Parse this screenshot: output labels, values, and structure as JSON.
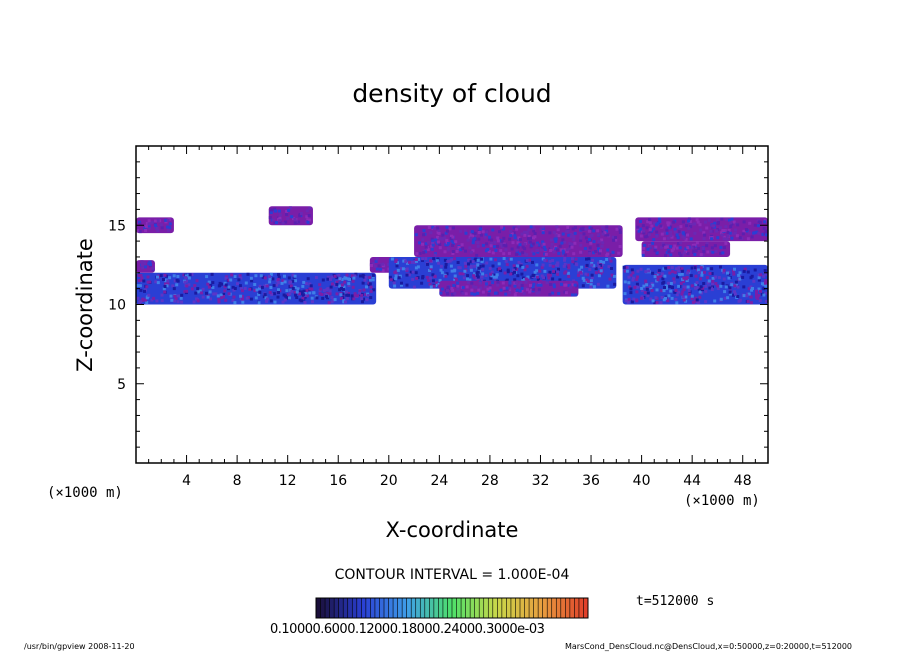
{
  "chart_data": {
    "type": "heatmap",
    "title": "density of cloud",
    "xlabel": "X-coordinate",
    "ylabel": "Z-coordinate",
    "x_unit": "(×1000 m)",
    "y_unit": "(×1000 m)",
    "xlim": [
      0,
      50
    ],
    "ylim": [
      0,
      20
    ],
    "xticks": [
      4,
      8,
      12,
      16,
      20,
      24,
      28,
      32,
      36,
      40,
      44,
      48
    ],
    "yticks": [
      5,
      10,
      15
    ],
    "contour_interval_text": "CONTOUR INTERVAL = 1.000E-04",
    "time_text": "t=512000 s",
    "colorbar_labels_text": "0.10000.6000.12000.18000.24000.3000e-03",
    "cloud_regions": [
      {
        "x": [
          0.0,
          3.0
        ],
        "z": [
          14.5,
          15.5
        ],
        "level": "purple"
      },
      {
        "x": [
          10.5,
          14.0
        ],
        "z": [
          15.0,
          16.2
        ],
        "level": "purple"
      },
      {
        "x": [
          0.0,
          19.0
        ],
        "z": [
          10.0,
          12.0
        ],
        "level": "blue"
      },
      {
        "x": [
          0.0,
          1.5
        ],
        "z": [
          12.0,
          12.8
        ],
        "level": "purple"
      },
      {
        "x": [
          18.5,
          23.0
        ],
        "z": [
          12.0,
          13.0
        ],
        "level": "purple"
      },
      {
        "x": [
          22.0,
          38.5
        ],
        "z": [
          13.0,
          15.0
        ],
        "level": "purple"
      },
      {
        "x": [
          20.0,
          38.0
        ],
        "z": [
          11.0,
          13.0
        ],
        "level": "blue"
      },
      {
        "x": [
          24.0,
          35.0
        ],
        "z": [
          10.5,
          11.5
        ],
        "level": "purple"
      },
      {
        "x": [
          38.5,
          50.0
        ],
        "z": [
          10.0,
          12.5
        ],
        "level": "blue"
      },
      {
        "x": [
          39.5,
          50.0
        ],
        "z": [
          14.0,
          15.5
        ],
        "level": "purple"
      },
      {
        "x": [
          40.0,
          47.0
        ],
        "z": [
          13.0,
          14.0
        ],
        "level": "purple"
      }
    ]
  },
  "colors": {
    "purple": "#7a1ea8",
    "blue": "#2a3fd4",
    "darkblue": "#1a1aa0",
    "lightblue": "#3f7fe8"
  },
  "footer": {
    "left": "/usr/bin/gpview   2008-11-20",
    "right": "MarsCond_DensCloud.nc@DensCloud,x=0:50000,z=0:20000,t=512000"
  }
}
